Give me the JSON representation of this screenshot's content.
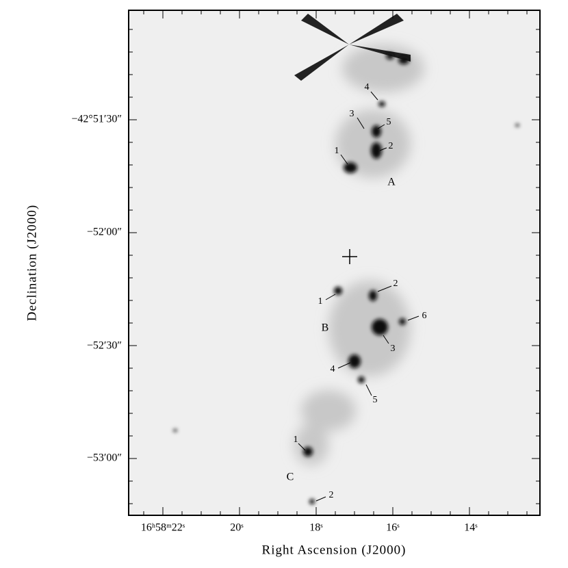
{
  "figure": {
    "x_axis": {
      "label": "Right Ascension (J2000)",
      "ticks": [
        "16ʰ58ᵐ22ˢ",
        "20ˢ",
        "18ˢ",
        "16ˢ",
        "14ˢ"
      ]
    },
    "y_axis": {
      "label": "Declination (J2000)",
      "ticks": [
        "−42°51′30″",
        "−52′00″",
        "−52′30″",
        "−53′00″"
      ]
    },
    "regions": [
      {
        "name": "A",
        "knots": [
          "1",
          "2",
          "3",
          "4",
          "5"
        ]
      },
      {
        "name": "B",
        "knots": [
          "1",
          "2",
          "3",
          "4",
          "5",
          "6"
        ]
      },
      {
        "name": "C",
        "knots": [
          "1",
          "2"
        ]
      }
    ]
  }
}
